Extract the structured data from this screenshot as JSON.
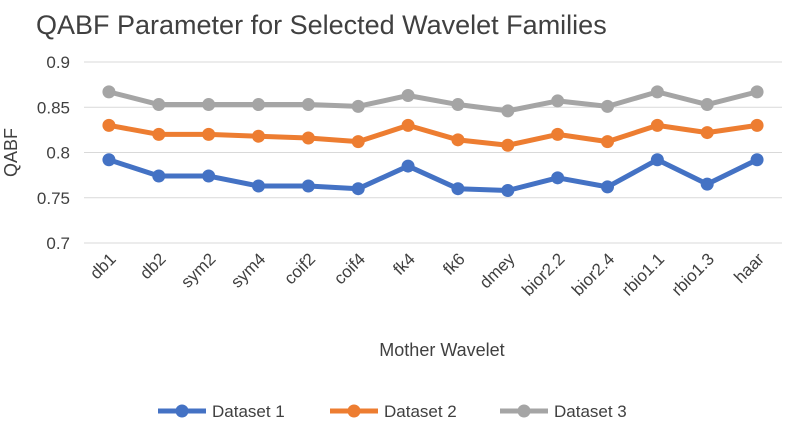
{
  "chart_data": {
    "type": "line",
    "title": "QABF Parameter for Selected Wavelet Families",
    "xlabel": "Mother Wavelet",
    "ylabel": "QABF",
    "ylim": [
      0.7,
      0.9
    ],
    "yticks": [
      "0.7",
      "0.75",
      "0.8",
      "0.85",
      "0.9"
    ],
    "grid": true,
    "legend_position": "bottom",
    "categories": [
      "db1",
      "db2",
      "sym2",
      "sym4",
      "coif2",
      "coif4",
      "fk4",
      "fk6",
      "dmey",
      "bior2.2",
      "bior2.4",
      "rbio1.1",
      "rbio1.3",
      "haar"
    ],
    "series": [
      {
        "name": "Dataset 1",
        "color": "#4472c4",
        "values": [
          0.792,
          0.774,
          0.774,
          0.763,
          0.763,
          0.76,
          0.785,
          0.76,
          0.758,
          0.772,
          0.762,
          0.792,
          0.765,
          0.792
        ]
      },
      {
        "name": "Dataset 2",
        "color": "#ed7d31",
        "values": [
          0.83,
          0.82,
          0.82,
          0.818,
          0.816,
          0.812,
          0.83,
          0.814,
          0.808,
          0.82,
          0.812,
          0.83,
          0.822,
          0.83
        ]
      },
      {
        "name": "Dataset 3",
        "color": "#a5a5a5",
        "values": [
          0.867,
          0.853,
          0.853,
          0.853,
          0.853,
          0.851,
          0.863,
          0.853,
          0.846,
          0.857,
          0.851,
          0.867,
          0.853,
          0.867
        ]
      }
    ]
  }
}
